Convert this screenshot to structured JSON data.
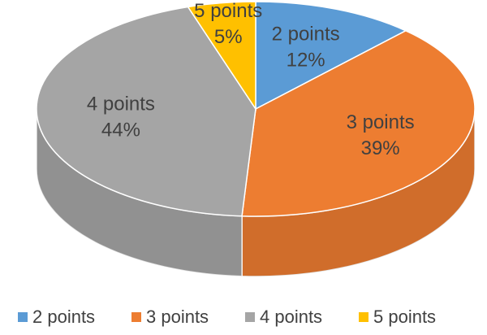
{
  "chart_data": {
    "type": "pie",
    "categories": [
      "2 points",
      "3 points",
      "4 points",
      "5 points"
    ],
    "values": [
      12,
      39,
      44,
      5
    ],
    "value_labels": [
      "12%",
      "39%",
      "44%",
      "5%"
    ],
    "colors": [
      "#5b9bd5",
      "#ed7d31",
      "#a5a5a5",
      "#ffc000"
    ],
    "legend": "bottom"
  }
}
